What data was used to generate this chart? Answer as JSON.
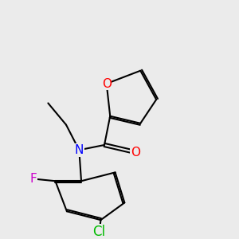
{
  "bg_color": "#ebebeb",
  "atom_colors": {
    "O": "#ff0000",
    "N": "#0000ff",
    "F": "#cc00cc",
    "Cl": "#00bb00",
    "C": "#000000"
  },
  "bond_color": "#000000",
  "bond_width": 1.5,
  "dbo": 0.06,
  "font_size": 11
}
